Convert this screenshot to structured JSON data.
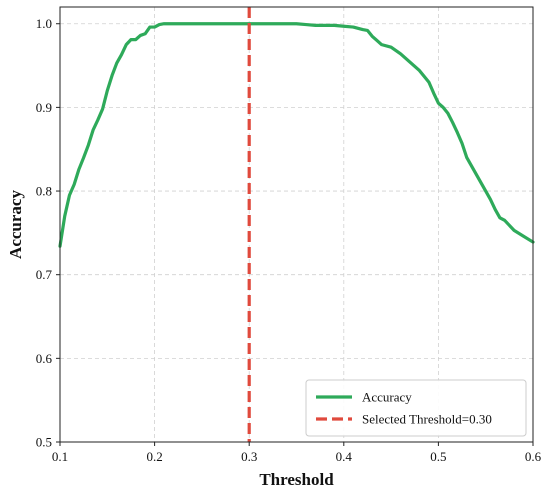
{
  "chart_data": {
    "type": "line",
    "xlabel": "Threshold",
    "ylabel": "Accuracy",
    "xlim": [
      0.1,
      0.6
    ],
    "ylim": [
      0.5,
      1.02
    ],
    "grid": true,
    "legend_position": "bottom-right",
    "x_ticks": [
      "0.1",
      "0.2",
      "0.3",
      "0.4",
      "0.5",
      "0.6"
    ],
    "y_ticks": [
      "0.5",
      "0.6",
      "0.7",
      "0.8",
      "0.9",
      "1.0"
    ],
    "series": [
      {
        "name": "Accuracy",
        "color": "#2eaa5a",
        "style": "solid",
        "x": [
          0.1,
          0.105,
          0.11,
          0.115,
          0.12,
          0.125,
          0.13,
          0.135,
          0.14,
          0.145,
          0.15,
          0.155,
          0.16,
          0.165,
          0.17,
          0.175,
          0.18,
          0.185,
          0.19,
          0.195,
          0.2,
          0.205,
          0.21,
          0.22,
          0.25,
          0.3,
          0.35,
          0.36,
          0.37,
          0.39,
          0.4,
          0.41,
          0.42,
          0.425,
          0.43,
          0.435,
          0.44,
          0.45,
          0.46,
          0.47,
          0.48,
          0.49,
          0.495,
          0.5,
          0.505,
          0.51,
          0.515,
          0.52,
          0.525,
          0.53,
          0.535,
          0.54,
          0.545,
          0.55,
          0.555,
          0.56,
          0.565,
          0.57,
          0.58,
          0.59,
          0.6
        ],
        "y": [
          0.734,
          0.77,
          0.795,
          0.808,
          0.826,
          0.84,
          0.855,
          0.873,
          0.885,
          0.898,
          0.92,
          0.938,
          0.953,
          0.963,
          0.975,
          0.981,
          0.981,
          0.986,
          0.988,
          0.996,
          0.996,
          0.999,
          1.0,
          1.0,
          1.0,
          1.0,
          1.0,
          0.999,
          0.998,
          0.998,
          0.997,
          0.996,
          0.993,
          0.992,
          0.985,
          0.98,
          0.975,
          0.972,
          0.964,
          0.954,
          0.944,
          0.93,
          0.917,
          0.905,
          0.9,
          0.893,
          0.882,
          0.87,
          0.857,
          0.84,
          0.83,
          0.82,
          0.81,
          0.8,
          0.79,
          0.778,
          0.768,
          0.765,
          0.753,
          0.746,
          0.739
        ]
      },
      {
        "name": "Selected Threshold=0.30",
        "color": "#e04a3d",
        "style": "dashed",
        "vertical_x": 0.3
      }
    ]
  }
}
